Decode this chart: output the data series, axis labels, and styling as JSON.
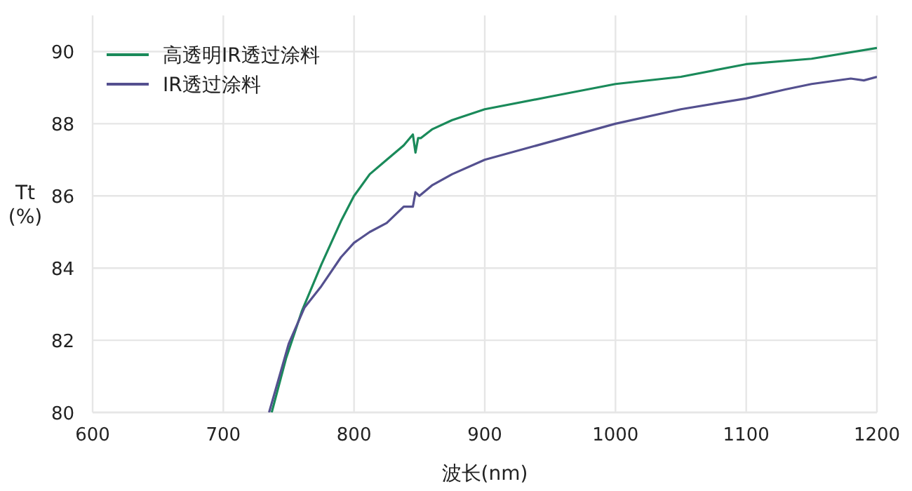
{
  "chart_data": {
    "type": "line",
    "xlabel": "波长(nm)",
    "ylabel": "Tt\n(%)",
    "xlim": [
      600,
      1200
    ],
    "ylim": [
      80,
      91
    ],
    "xticks": [
      600,
      700,
      800,
      900,
      1000,
      1100,
      1200
    ],
    "yticks": [
      80,
      82,
      84,
      86,
      88,
      90
    ],
    "grid": true,
    "legend": "top left",
    "marker": "none",
    "line_style": "solid",
    "series": [
      {
        "name": "高透明IR透过涂料",
        "color": "#1a8a5a",
        "x": [
          737,
          748,
          760,
          775,
          790,
          800,
          812,
          825,
          838,
          845,
          847,
          849,
          851,
          860,
          875,
          900,
          950,
          1000,
          1050,
          1100,
          1150,
          1200
        ],
        "values": [
          80,
          81.5,
          82.8,
          84.1,
          85.3,
          86.0,
          86.6,
          87.0,
          87.4,
          87.7,
          87.2,
          87.6,
          87.6,
          87.85,
          88.1,
          88.4,
          88.75,
          89.1,
          89.3,
          89.65,
          89.8,
          90.1
        ]
      },
      {
        "name": "IR透过涂料",
        "color": "#54508f",
        "x": [
          735,
          750,
          762,
          775,
          790,
          800,
          812,
          825,
          838,
          845,
          847,
          850,
          860,
          875,
          900,
          950,
          1000,
          1050,
          1100,
          1130,
          1150,
          1180,
          1190,
          1200
        ],
        "values": [
          80,
          81.9,
          82.9,
          83.5,
          84.3,
          84.7,
          85.0,
          85.25,
          85.7,
          85.7,
          86.1,
          86.0,
          86.3,
          86.6,
          87.0,
          87.5,
          88.0,
          88.4,
          88.7,
          88.95,
          89.1,
          89.25,
          89.2,
          89.3
        ]
      }
    ]
  }
}
